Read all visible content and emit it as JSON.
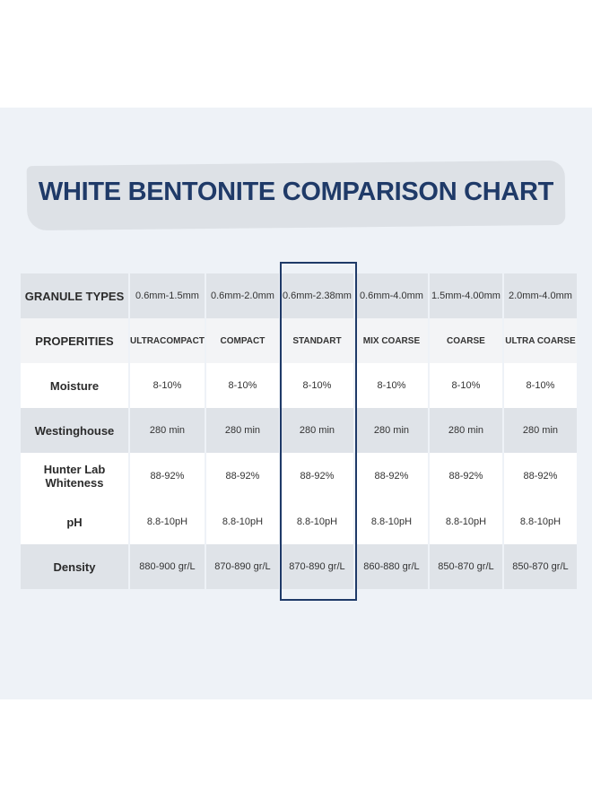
{
  "header": {
    "title": "WHITE BENTONITE COMPARISON CHART"
  },
  "table": {
    "rows": [
      [
        "GRANULE TYPES",
        "0.6mm-1.5mm",
        "0.6mm-2.0mm",
        "0.6mm-2.38mm",
        "0.6mm-4.0mm",
        "1.5mm-4.00mm",
        "2.0mm-4.0mm"
      ],
      [
        "PROPERITIES",
        "ULTRACOMPACT",
        "COMPACT",
        "STANDART",
        "MIX COARSE",
        "COARSE",
        "ULTRA COARSE"
      ],
      [
        "Moisture",
        "8-10%",
        "8-10%",
        "8-10%",
        "8-10%",
        "8-10%",
        "8-10%"
      ],
      [
        "Westinghouse",
        "280 min",
        "280 min",
        "280 min",
        "280 min",
        "280 min",
        "280 min"
      ],
      [
        "Hunter Lab Whiteness",
        "88-92%",
        "88-92%",
        "88-92%",
        "88-92%",
        "88-92%",
        "88-92%"
      ],
      [
        "pH",
        "8.8-10pH",
        "8.8-10pH",
        "8.8-10pH",
        "8.8-10pH",
        "8.8-10pH",
        "8.8-10pH"
      ],
      [
        "Density",
        "880-900 gr/L",
        "870-890 gr/L",
        "870-890 gr/L",
        "860-880 gr/L",
        "850-870 gr/L",
        "850-870 gr/L"
      ]
    ]
  }
}
